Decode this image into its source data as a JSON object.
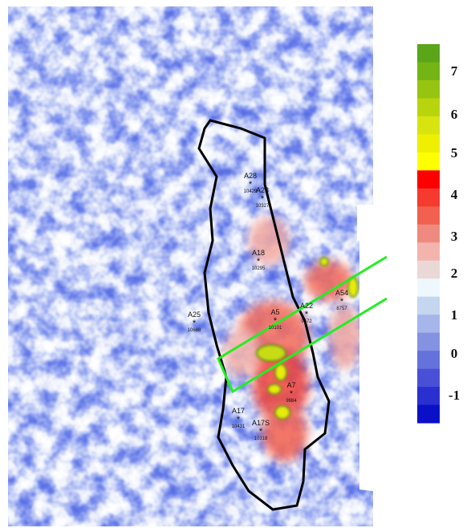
{
  "wells": [
    {
      "name": "A28",
      "id": "10429"
    },
    {
      "name": "A28",
      "id": "10327"
    },
    {
      "name": "A18",
      "id": "10295"
    },
    {
      "name": "A5",
      "id": "10101"
    },
    {
      "name": "A22",
      "id": "9572"
    },
    {
      "name": "A54",
      "id": "8757"
    },
    {
      "name": "A25",
      "id": "10688"
    },
    {
      "name": "A7",
      "id": "9984"
    },
    {
      "name": "A17",
      "id": "10431"
    },
    {
      "name": "A17S",
      "id": "10318"
    }
  ],
  "colorbar": {
    "labels": [
      "7",
      "6",
      "5",
      "4",
      "3",
      "2",
      "1",
      "0",
      "-1"
    ],
    "colors": [
      "#5aa51a",
      "#74b414",
      "#96c410",
      "#b8d40c",
      "#d8e410",
      "#eef000",
      "#ffff00",
      "#ff0000",
      "#f53a30",
      "#f26050",
      "#ee8a80",
      "#f2b4ac",
      "#ead8d6",
      "#eef8fc",
      "#c4d6f0",
      "#a4b6ea",
      "#8592e2",
      "#6672dc",
      "#4a50d6",
      "#2a30d0",
      "#0a10c8"
    ]
  }
}
